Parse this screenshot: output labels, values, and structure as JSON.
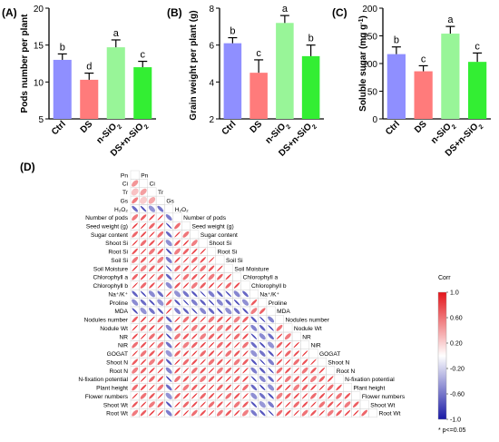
{
  "colors": {
    "Ctrl": "#8f8fff",
    "DS": "#ff7b7b",
    "n-SiO2": "#98f598",
    "DS+n-SiO2": "#33ee33",
    "corr_pos": "#e4151b",
    "corr_neg": "#1a1aa6",
    "error_bar": "#000000"
  },
  "chart_data": [
    {
      "type": "bar",
      "panel_label": "(A)",
      "ylabel": "Pods number per plant",
      "ylim": [
        5,
        20
      ],
      "yticks": [
        5,
        10,
        15,
        20
      ],
      "categories": [
        "Ctrl",
        "DS",
        "n-SiO2",
        "DS+n-SiO2"
      ],
      "values": [
        13.0,
        10.3,
        14.7,
        12.0
      ],
      "errors": [
        0.8,
        0.9,
        1.0,
        0.8
      ],
      "letters": [
        "b",
        "d",
        "a",
        "c"
      ]
    },
    {
      "type": "bar",
      "panel_label": "(B)",
      "ylabel": "Grain weight per plant (g)",
      "ylim": [
        2,
        8
      ],
      "yticks": [
        2,
        4,
        6,
        8
      ],
      "categories": [
        "Ctrl",
        "DS",
        "n-SiO2",
        "DS+n-SiO2"
      ],
      "values": [
        6.1,
        4.5,
        7.2,
        5.4
      ],
      "errors": [
        0.3,
        0.7,
        0.4,
        0.6
      ],
      "letters": [
        "b",
        "c",
        "a",
        "b"
      ]
    },
    {
      "type": "bar",
      "panel_label": "(C)",
      "ylabel": "Soluble sugar (mg g-1)",
      "ylim": [
        0,
        200
      ],
      "yticks": [
        0,
        50,
        100,
        150,
        200
      ],
      "categories": [
        "Ctrl",
        "DS",
        "n-SiO2",
        "DS+n-SiO2"
      ],
      "values": [
        117,
        86,
        154,
        103
      ],
      "errors": [
        13,
        10,
        13,
        16
      ],
      "letters": [
        "b",
        "c",
        "a",
        "c"
      ]
    },
    {
      "type": "heatmap",
      "panel_label": "(D)",
      "variables": [
        "Pn",
        "Ci",
        "Tr",
        "Gs",
        "H₂O₂",
        "Number of pods",
        "Seed weight (g)",
        "Sugar content",
        "Shoot Si",
        "Root Si",
        "Soil Si",
        "Soil Moisture",
        "Chlorophyll a",
        "Chlorophyll b",
        "Na⁺/K⁺",
        "Proline",
        "MDA",
        "Nodules number",
        "Nodule Wt",
        "NR",
        "NiR",
        "GOGAT",
        "Shoot N",
        "Root N",
        "N-fixation potential",
        "Plant height",
        "Flower numbers",
        "Shoot Wt",
        "Root Wt"
      ],
      "groups": [
        0,
        0,
        0,
        0,
        1,
        0,
        0,
        0,
        0,
        0,
        0,
        0,
        0,
        0,
        1,
        1,
        1,
        0,
        0,
        0,
        0,
        0,
        0,
        0,
        0,
        0,
        0,
        0,
        0
      ],
      "colorbar_title": "Corr",
      "colorbar_ticks": [
        "1.0",
        "0.60",
        "0.20",
        "-0.20",
        "-0.60",
        "-1.0"
      ],
      "legend_note": "* p<=0.05"
    }
  ]
}
